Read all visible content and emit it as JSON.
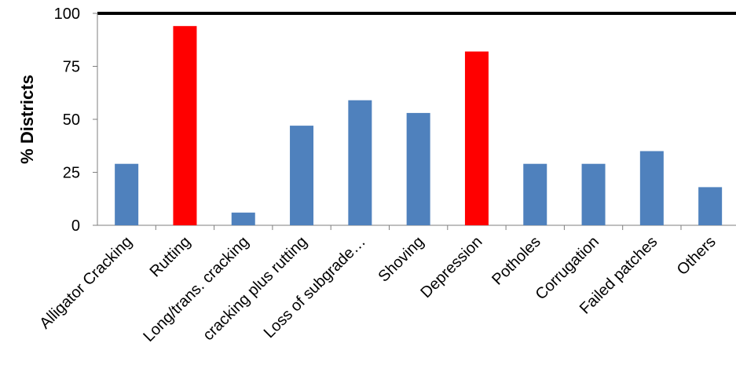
{
  "chart_data": {
    "type": "bar",
    "title": "",
    "xlabel": "",
    "ylabel": "% Districts",
    "ylim": [
      0,
      100
    ],
    "yticks": [
      0,
      25,
      50,
      75,
      100
    ],
    "grid": false,
    "categories": [
      "Alligator Cracking",
      "Rutting",
      "Long/trans. cracking",
      "cracking plus rutting",
      "Loss of subgrade…",
      "Shoving",
      "Depression",
      "Potholes",
      "Corrugation",
      "Failed patches",
      "Others"
    ],
    "values": [
      29,
      94,
      6,
      47,
      59,
      53,
      82,
      29,
      29,
      35,
      18
    ],
    "bar_colors": [
      "#4f81bd",
      "#ff0000",
      "#4f81bd",
      "#4f81bd",
      "#4f81bd",
      "#4f81bd",
      "#ff0000",
      "#4f81bd",
      "#4f81bd",
      "#4f81bd",
      "#4f81bd"
    ]
  }
}
